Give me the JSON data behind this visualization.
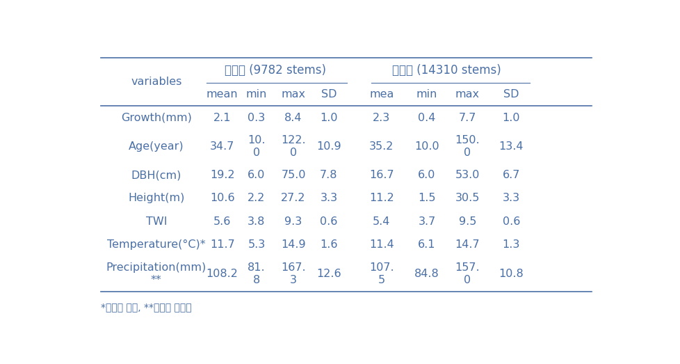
{
  "header_group1": "소나무 (9782 stems)",
  "header_group2": "참나무 (14310 stems)",
  "col_headers_pine": [
    "mean",
    "min",
    "max",
    "SD"
  ],
  "col_headers_oak": [
    "mea",
    "min",
    "max",
    "SD"
  ],
  "rows": [
    {
      "variable": "Growth(mm)",
      "pine": [
        "2.1",
        "0.3",
        "8.4",
        "1.0"
      ],
      "oak": [
        "2.3",
        "0.4",
        "7.7",
        "1.0"
      ]
    },
    {
      "variable": "Age(year)",
      "pine": [
        "34.7",
        "10.\n0",
        "122.\n0",
        "10.9"
      ],
      "oak": [
        "35.2",
        "10.0",
        "150.\n0",
        "13.4"
      ]
    },
    {
      "variable": "DBH(cm)",
      "pine": [
        "19.2",
        "6.0",
        "75.0",
        "7.8"
      ],
      "oak": [
        "16.7",
        "6.0",
        "53.0",
        "6.7"
      ]
    },
    {
      "variable": "Height(m)",
      "pine": [
        "10.6",
        "2.2",
        "27.2",
        "3.3"
      ],
      "oak": [
        "11.2",
        "1.5",
        "30.5",
        "3.3"
      ]
    },
    {
      "variable": "TWI",
      "pine": [
        "5.6",
        "3.8",
        "9.3",
        "0.6"
      ],
      "oak": [
        "5.4",
        "3.7",
        "9.5",
        "0.6"
      ]
    },
    {
      "variable": "Temperature(°C)*",
      "pine": [
        "11.7",
        "5.3",
        "14.9",
        "1.6"
      ],
      "oak": [
        "11.4",
        "6.1",
        "14.7",
        "1.3"
      ]
    },
    {
      "variable": "Precipitation(mm)\n**",
      "pine": [
        "108.2",
        "81.\n8",
        "167.\n3",
        "12.6"
      ],
      "oak": [
        "107.\n5",
        "84.8",
        "157.\n0",
        "10.8"
      ]
    }
  ],
  "footnote": "*연평균 온도, **월평균 강수량",
  "text_color": "#4a6fa5",
  "line_color": "#4a6fa5",
  "bg_color": "#ffffff",
  "font_size": 11.5,
  "header_font_size": 12
}
